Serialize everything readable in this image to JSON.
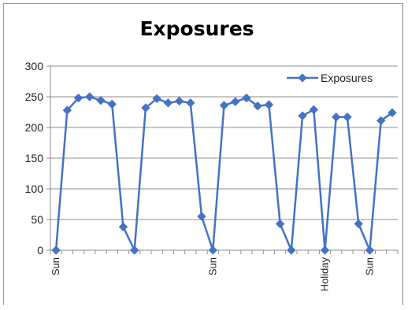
{
  "chart_data": {
    "type": "line",
    "title": "Exposures",
    "xlabel": "",
    "ylabel": "",
    "ylim": [
      0,
      300
    ],
    "yticks": [
      0,
      50,
      100,
      150,
      200,
      250,
      300
    ],
    "grid": {
      "horizontal": true,
      "vertical": false
    },
    "legend": {
      "position": "top-right",
      "entries": [
        "Exposures"
      ]
    },
    "series": [
      {
        "name": "Exposures",
        "color": "#4472C4",
        "marker": "diamond",
        "values": [
          0,
          228,
          248,
          250,
          244,
          238,
          38,
          0,
          232,
          247,
          240,
          243,
          240,
          55,
          0,
          236,
          242,
          248,
          235,
          237,
          43,
          0,
          219,
          229,
          0,
          217,
          217,
          43,
          0,
          211,
          224
        ]
      }
    ],
    "x_labels": [
      {
        "index": 0,
        "text": "Sun"
      },
      {
        "index": 14,
        "text": "Sun"
      },
      {
        "index": 24,
        "text": "Holiday"
      },
      {
        "index": 28,
        "text": "Sun"
      }
    ]
  }
}
